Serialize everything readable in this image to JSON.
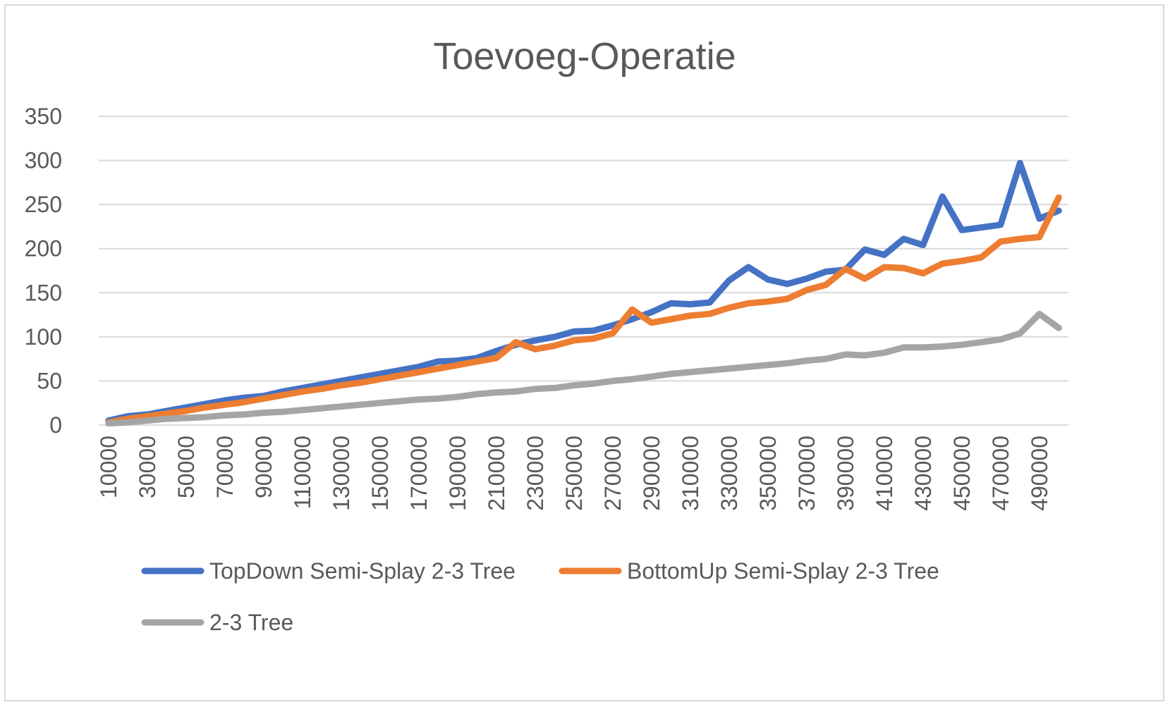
{
  "chart_data": {
    "type": "line",
    "title": "Toevoeg-Operatie",
    "xlabel": "",
    "ylabel": "",
    "ylim": [
      0,
      350
    ],
    "y_ticks": [
      0,
      50,
      100,
      150,
      200,
      250,
      300,
      350
    ],
    "x_tick_labels": [
      "10000",
      "30000",
      "50000",
      "70000",
      "90000",
      "110000",
      "130000",
      "150000",
      "170000",
      "190000",
      "210000",
      "230000",
      "250000",
      "270000",
      "290000",
      "310000",
      "330000",
      "350000",
      "370000",
      "390000",
      "410000",
      "430000",
      "450000",
      "470000",
      "490000"
    ],
    "grid": true,
    "legend_position": "bottom",
    "x": [
      10000,
      20000,
      30000,
      40000,
      50000,
      60000,
      70000,
      80000,
      90000,
      100000,
      110000,
      120000,
      130000,
      140000,
      150000,
      160000,
      170000,
      180000,
      190000,
      200000,
      210000,
      220000,
      230000,
      240000,
      250000,
      260000,
      270000,
      280000,
      290000,
      300000,
      310000,
      320000,
      330000,
      340000,
      350000,
      360000,
      370000,
      380000,
      390000,
      400000,
      410000,
      420000,
      430000,
      440000,
      450000,
      460000,
      470000,
      480000,
      490000,
      500000
    ],
    "series": [
      {
        "name": "TopDown Semi-Splay 2-3 Tree",
        "color": "#4472c4",
        "values": [
          5,
          10,
          12,
          16,
          20,
          24,
          28,
          31,
          33,
          38,
          42,
          46,
          50,
          54,
          58,
          62,
          66,
          72,
          73,
          76,
          84,
          91,
          96,
          100,
          106,
          107,
          113,
          120,
          128,
          138,
          137,
          139,
          164,
          179,
          165,
          160,
          166,
          174,
          176,
          199,
          193,
          211,
          204,
          259,
          221,
          224,
          227,
          297,
          234,
          243
        ]
      },
      {
        "name": "BottomUp Semi-Splay 2-3 Tree",
        "color": "#ed7d31",
        "values": [
          3,
          7,
          10,
          13,
          16,
          20,
          23,
          26,
          30,
          34,
          38,
          41,
          45,
          48,
          52,
          56,
          60,
          64,
          68,
          72,
          76,
          94,
          86,
          90,
          96,
          98,
          104,
          131,
          116,
          120,
          124,
          126,
          133,
          138,
          140,
          143,
          153,
          159,
          177,
          166,
          179,
          178,
          172,
          183,
          186,
          190,
          208,
          211,
          213,
          258
        ]
      },
      {
        "name": "2-3 Tree",
        "color": "#a5a5a5",
        "values": [
          2,
          3,
          5,
          7,
          8,
          9,
          11,
          12,
          14,
          15,
          17,
          19,
          21,
          23,
          25,
          27,
          29,
          30,
          32,
          35,
          37,
          38,
          41,
          42,
          45,
          47,
          50,
          52,
          55,
          58,
          60,
          62,
          64,
          66,
          68,
          70,
          73,
          75,
          80,
          79,
          82,
          88,
          88,
          89,
          91,
          94,
          97,
          104,
          126,
          110
        ]
      }
    ]
  }
}
